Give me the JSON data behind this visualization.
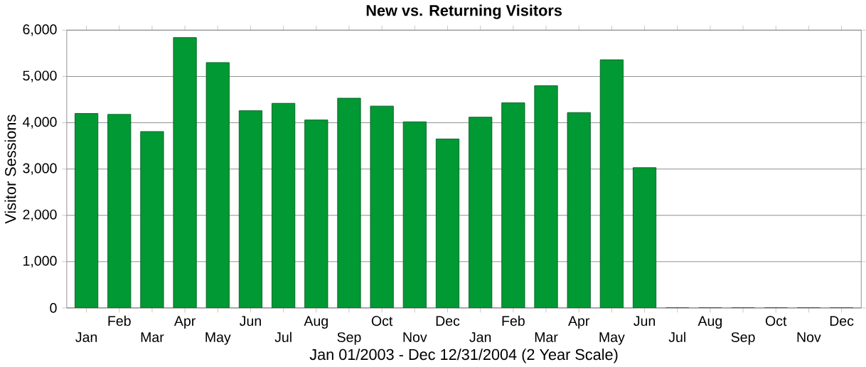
{
  "chart_data": {
    "type": "bar",
    "title": "New vs. Returning Visitors",
    "xlabel": "Jan 01/2003 - Dec 12/31/2004 (2 Year Scale)",
    "ylabel": "Visitor Sessions",
    "categories": [
      "Jan",
      "Feb",
      "Mar",
      "Apr",
      "May",
      "Jun",
      "Jul",
      "Aug",
      "Sep",
      "Oct",
      "Nov",
      "Dec",
      "Jan",
      "Feb",
      "Mar",
      "Apr",
      "May",
      "Jun",
      "Jul",
      "Aug",
      "Sep",
      "Oct",
      "Nov",
      "Dec"
    ],
    "values": [
      4200,
      4180,
      3810,
      5840,
      5300,
      4260,
      4420,
      4060,
      4530,
      4360,
      4020,
      3650,
      4120,
      4430,
      4800,
      4220,
      5360,
      3030,
      0,
      0,
      0,
      0,
      0,
      0
    ],
    "color": "#009933",
    "ylim": [
      0,
      6000
    ],
    "yticks": [
      0,
      {
        "value": 1000,
        "label": "1,000"
      },
      {
        "value": 2000,
        "label": "2,000"
      },
      {
        "value": 3000,
        "label": "3,000"
      },
      {
        "value": 4000,
        "label": "4,000"
      },
      {
        "value": 5000,
        "label": "5,000"
      },
      {
        "value": 6000,
        "label": "6,000"
      }
    ],
    "grid": "y"
  }
}
